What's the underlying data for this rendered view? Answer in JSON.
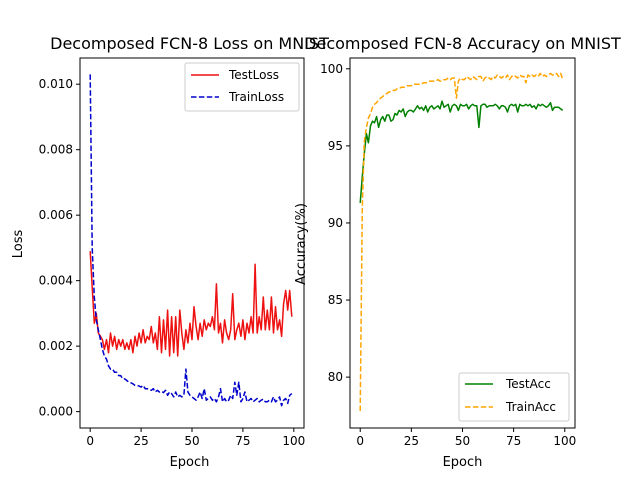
{
  "chart_data": [
    {
      "type": "line",
      "title": "Decomposed FCN-8 Loss on MNIST",
      "xlabel": "Epoch",
      "ylabel": "Loss",
      "xlim": [
        -5,
        105
      ],
      "ylim": [
        -0.0005,
        0.0108
      ],
      "xticks": [
        0,
        25,
        50,
        75,
        100
      ],
      "xtick_labels": [
        "0",
        "25",
        "50",
        "75",
        "100"
      ],
      "yticks": [
        0.0,
        0.002,
        0.004,
        0.006,
        0.008,
        0.01
      ],
      "ytick_labels": [
        "0.000",
        "0.002",
        "0.004",
        "0.006",
        "0.008",
        "0.010"
      ],
      "grid": false,
      "legend_position": "upper right",
      "series": [
        {
          "name": "TestLoss",
          "color": "#ee1111",
          "style": "solid",
          "x": [
            0,
            1,
            2,
            3,
            4,
            5,
            6,
            7,
            8,
            9,
            10,
            11,
            12,
            13,
            14,
            15,
            16,
            17,
            18,
            19,
            20,
            21,
            22,
            23,
            24,
            25,
            26,
            27,
            28,
            29,
            30,
            31,
            32,
            33,
            34,
            35,
            36,
            37,
            38,
            39,
            40,
            41,
            42,
            43,
            44,
            45,
            46,
            47,
            48,
            49,
            50,
            51,
            52,
            53,
            54,
            55,
            56,
            57,
            58,
            59,
            60,
            61,
            62,
            63,
            64,
            65,
            66,
            67,
            68,
            69,
            70,
            71,
            72,
            73,
            74,
            75,
            76,
            77,
            78,
            79,
            80,
            81,
            82,
            83,
            84,
            85,
            86,
            87,
            88,
            89,
            90,
            91,
            92,
            93,
            94,
            95,
            96,
            97,
            98,
            99
          ],
          "values": [
            0.0049,
            0.0038,
            0.0027,
            0.003,
            0.0024,
            0.0023,
            0.0022,
            0.0019,
            0.0022,
            0.0018,
            0.0024,
            0.002,
            0.0023,
            0.0019,
            0.0022,
            0.002,
            0.0022,
            0.0019,
            0.0021,
            0.0019,
            0.0022,
            0.0018,
            0.0023,
            0.002,
            0.0024,
            0.0021,
            0.0025,
            0.0021,
            0.0023,
            0.0022,
            0.0026,
            0.0021,
            0.0024,
            0.0019,
            0.0029,
            0.0018,
            0.0028,
            0.0019,
            0.0031,
            0.0017,
            0.0029,
            0.0018,
            0.0029,
            0.0017,
            0.0031,
            0.0024,
            0.0019,
            0.0025,
            0.0021,
            0.0027,
            0.0022,
            0.0032,
            0.0026,
            0.0022,
            0.0027,
            0.0023,
            0.0028,
            0.0025,
            0.0027,
            0.0026,
            0.0029,
            0.0025,
            0.0039,
            0.0024,
            0.0027,
            0.0021,
            0.0028,
            0.0024,
            0.0022,
            0.0025,
            0.0036,
            0.0022,
            0.0025,
            0.0027,
            0.0023,
            0.0028,
            0.0022,
            0.0027,
            0.0024,
            0.0029,
            0.0024,
            0.0045,
            0.0024,
            0.0029,
            0.0025,
            0.0035,
            0.0025,
            0.0031,
            0.0025,
            0.0035,
            0.0024,
            0.0032,
            0.0025,
            0.0028,
            0.0023,
            0.0033,
            0.0037,
            0.0031,
            0.0037,
            0.0029
          ]
        },
        {
          "name": "TrainLoss",
          "color": "#0000cc",
          "style": "dashed",
          "x": [
            0,
            1,
            2,
            3,
            4,
            5,
            6,
            7,
            8,
            9,
            10,
            11,
            12,
            13,
            14,
            15,
            16,
            17,
            18,
            19,
            20,
            21,
            22,
            23,
            24,
            25,
            26,
            27,
            28,
            29,
            30,
            31,
            32,
            33,
            34,
            35,
            36,
            37,
            38,
            39,
            40,
            41,
            42,
            43,
            44,
            45,
            46,
            47,
            48,
            49,
            50,
            51,
            52,
            53,
            54,
            55,
            56,
            57,
            58,
            59,
            60,
            61,
            62,
            63,
            64,
            65,
            66,
            67,
            68,
            69,
            70,
            71,
            72,
            73,
            74,
            75,
            76,
            77,
            78,
            79,
            80,
            81,
            82,
            83,
            84,
            85,
            86,
            87,
            88,
            89,
            90,
            91,
            92,
            93,
            94,
            95,
            96,
            97,
            98,
            99
          ],
          "values": [
            0.0103,
            0.005,
            0.0035,
            0.0028,
            0.0025,
            0.0022,
            0.0019,
            0.0017,
            0.0016,
            0.0014,
            0.0013,
            0.0013,
            0.0012,
            0.0012,
            0.0011,
            0.0011,
            0.001,
            0.001,
            0.00095,
            0.0009,
            0.00088,
            0.00085,
            0.0008,
            0.0008,
            0.00078,
            0.00075,
            0.0008,
            0.0007,
            0.0007,
            0.00068,
            0.00065,
            0.0007,
            0.0006,
            0.00065,
            0.0006,
            0.00062,
            0.00058,
            0.00065,
            0.0005,
            0.0006,
            0.00055,
            0.00045,
            0.0006,
            0.00045,
            0.0005,
            0.00045,
            0.0005,
            0.0013,
            0.0006,
            0.0005,
            0.00045,
            0.0004,
            0.00035,
            0.00045,
            0.0006,
            0.0004,
            0.0007,
            0.00035,
            0.0004,
            0.00045,
            0.00035,
            0.0004,
            0.0003,
            0.00045,
            0.0007,
            0.0003,
            0.0004,
            0.0003,
            0.00035,
            0.0005,
            0.0004,
            0.0009,
            0.0005,
            0.0009,
            0.0003,
            0.0004,
            0.0006,
            0.0003,
            0.00035,
            0.0004,
            0.0003,
            0.00035,
            0.0004,
            0.0003,
            0.00035,
            0.00038,
            0.0003,
            0.0003,
            0.00035,
            0.0003,
            0.00045,
            0.0003,
            0.00035,
            0.00045,
            0.00018,
            0.00035,
            0.0004,
            0.00025,
            0.0005,
            0.00055
          ]
        }
      ]
    },
    {
      "type": "line",
      "title": "Decomposed FCN-8 Accuracy on MNIST",
      "xlabel": "Epoch",
      "ylabel": "Accuracy(%)",
      "xlim": [
        -5,
        105
      ],
      "ylim": [
        76.7,
        100.7
      ],
      "xticks": [
        0,
        25,
        50,
        75,
        100
      ],
      "xtick_labels": [
        "0",
        "25",
        "50",
        "75",
        "100"
      ],
      "yticks": [
        80,
        85,
        90,
        95,
        100
      ],
      "ytick_labels": [
        "80",
        "85",
        "90",
        "95",
        "100"
      ],
      "grid": false,
      "legend_position": "lower right",
      "series": [
        {
          "name": "TestAcc",
          "color": "#008000",
          "style": "solid",
          "x": [
            0,
            1,
            2,
            3,
            4,
            5,
            6,
            7,
            8,
            9,
            10,
            11,
            12,
            13,
            14,
            15,
            16,
            17,
            18,
            19,
            20,
            21,
            22,
            23,
            24,
            25,
            26,
            27,
            28,
            29,
            30,
            31,
            32,
            33,
            34,
            35,
            36,
            37,
            38,
            39,
            40,
            41,
            42,
            43,
            44,
            45,
            46,
            47,
            48,
            49,
            50,
            51,
            52,
            53,
            54,
            55,
            56,
            57,
            58,
            59,
            60,
            61,
            62,
            63,
            64,
            65,
            66,
            67,
            68,
            69,
            70,
            71,
            72,
            73,
            74,
            75,
            76,
            77,
            78,
            79,
            80,
            81,
            82,
            83,
            84,
            85,
            86,
            87,
            88,
            89,
            90,
            91,
            92,
            93,
            94,
            95,
            96,
            97,
            98,
            99
          ],
          "values": [
            91.3,
            93.0,
            94.5,
            95.8,
            95.2,
            96.3,
            96.6,
            96.5,
            96.9,
            96.2,
            96.7,
            96.9,
            96.6,
            97.0,
            97.0,
            96.6,
            96.7,
            97.1,
            97.0,
            97.3,
            97.2,
            97.4,
            96.9,
            97.2,
            97.3,
            97.3,
            97.2,
            97.4,
            97.6,
            97.4,
            97.5,
            97.3,
            97.6,
            97.2,
            97.5,
            97.6,
            97.4,
            97.5,
            97.6,
            97.4,
            97.9,
            97.5,
            97.6,
            97.7,
            97.2,
            97.6,
            97.7,
            97.6,
            97.3,
            97.7,
            97.6,
            97.6,
            97.7,
            97.4,
            97.6,
            97.7,
            97.6,
            97.6,
            96.2,
            97.6,
            97.7,
            97.7,
            97.5,
            97.6,
            97.6,
            97.6,
            97.7,
            97.6,
            97.4,
            97.6,
            97.6,
            97.5,
            97.2,
            97.6,
            97.7,
            97.6,
            97.7,
            97.2,
            97.7,
            97.6,
            97.6,
            97.7,
            97.6,
            97.7,
            97.5,
            97.6,
            97.4,
            97.7,
            97.6,
            97.7,
            97.6,
            97.5,
            97.6,
            97.8,
            97.3,
            97.5,
            97.5,
            97.5,
            97.4,
            97.3
          ]
        },
        {
          "name": "TrainAcc",
          "color": "#ffa500",
          "style": "dashed",
          "x": [
            0,
            1,
            2,
            3,
            4,
            5,
            6,
            7,
            8,
            9,
            10,
            11,
            12,
            13,
            14,
            15,
            16,
            17,
            18,
            19,
            20,
            21,
            22,
            23,
            24,
            25,
            26,
            27,
            28,
            29,
            30,
            31,
            32,
            33,
            34,
            35,
            36,
            37,
            38,
            39,
            40,
            41,
            42,
            43,
            44,
            45,
            46,
            47,
            48,
            49,
            50,
            51,
            52,
            53,
            54,
            55,
            56,
            57,
            58,
            59,
            60,
            61,
            62,
            63,
            64,
            65,
            66,
            67,
            68,
            69,
            70,
            71,
            72,
            73,
            74,
            75,
            76,
            77,
            78,
            79,
            80,
            81,
            82,
            83,
            84,
            85,
            86,
            87,
            88,
            89,
            90,
            91,
            92,
            93,
            94,
            95,
            96,
            97,
            98,
            99
          ],
          "values": [
            77.8,
            91.0,
            95.3,
            96.2,
            96.8,
            97.1,
            97.5,
            97.7,
            97.8,
            98.0,
            98.1,
            98.2,
            98.3,
            98.4,
            98.5,
            98.5,
            98.6,
            98.6,
            98.7,
            98.7,
            98.8,
            98.8,
            98.8,
            98.9,
            98.9,
            98.9,
            99.0,
            99.0,
            99.0,
            99.0,
            99.0,
            99.1,
            99.1,
            99.1,
            99.2,
            99.2,
            99.2,
            99.2,
            99.3,
            99.2,
            99.2,
            99.3,
            99.3,
            99.4,
            99.3,
            99.4,
            99.4,
            98.1,
            99.2,
            99.4,
            99.3,
            99.3,
            99.5,
            99.4,
            99.3,
            99.5,
            99.4,
            99.3,
            99.5,
            99.5,
            99.2,
            99.4,
            99.5,
            99.4,
            99.3,
            99.5,
            99.4,
            99.6,
            99.5,
            99.4,
            99.5,
            99.4,
            99.6,
            99.3,
            99.5,
            99.6,
            99.5,
            99.4,
            99.6,
            99.5,
            99.5,
            99.1,
            99.6,
            99.5,
            99.6,
            99.5,
            99.6,
            99.5,
            99.7,
            99.5,
            99.6,
            99.5,
            99.6,
            99.7,
            99.6,
            99.6,
            99.7,
            99.5,
            99.7,
            99.3
          ]
        }
      ]
    }
  ]
}
